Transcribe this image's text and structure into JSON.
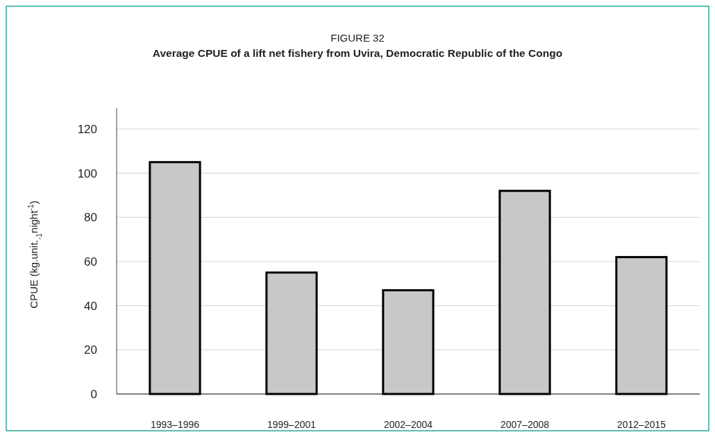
{
  "chart_data": {
    "type": "bar",
    "title": "FIGURE 32",
    "subtitle": "Average CPUE of a lift net fishery from Uvira, Democratic Republic of the Congo",
    "ylabel": "CPUE (kg.unit.$_{-1}$night$^{-1}$)",
    "categories": [
      "1993–1996",
      "1999–2001",
      "2002–2004",
      "2007–2008",
      "2012–2015"
    ],
    "values": [
      105,
      55,
      47,
      92,
      62
    ],
    "color": "#c8c8c8",
    "ylim": [
      0,
      120
    ],
    "yticks": [
      0,
      20,
      40,
      60,
      80,
      100,
      120
    ],
    "grid": "y"
  }
}
